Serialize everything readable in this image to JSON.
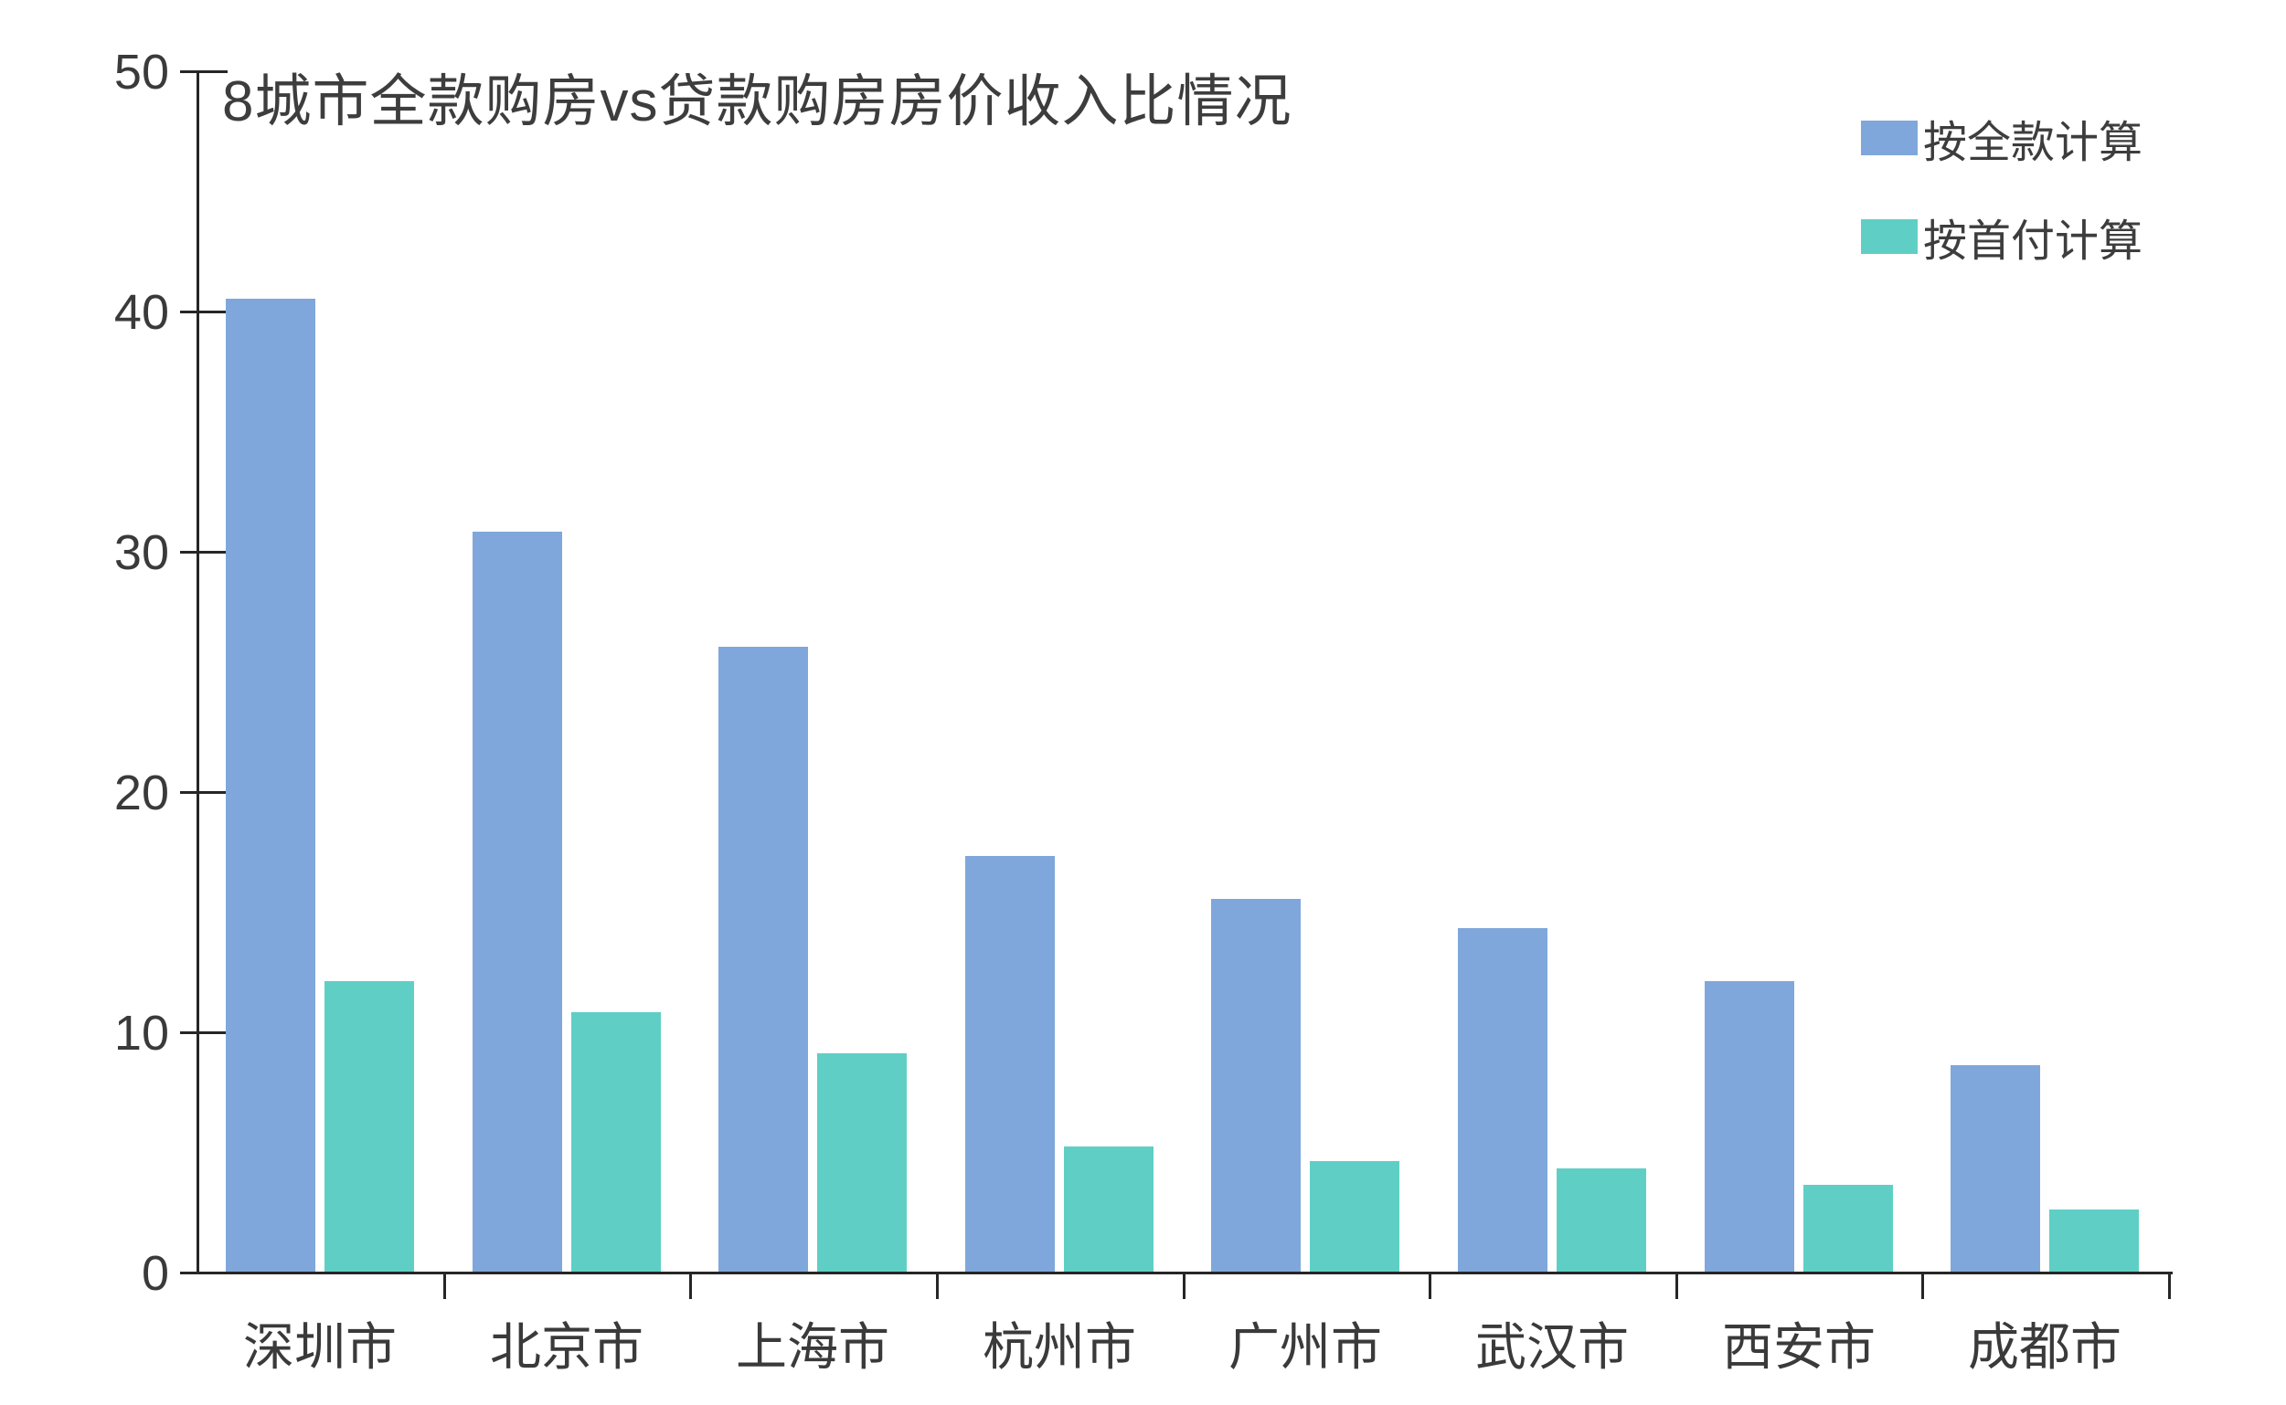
{
  "title": "8城市全款购房vs贷款购房房价收入比情况",
  "chart_data": {
    "type": "bar",
    "title": "8城市全款购房vs贷款购房房价收入比情况",
    "categories": [
      "深圳市",
      "北京市",
      "上海市",
      "杭州市",
      "广州市",
      "武汉市",
      "西安市",
      "成都市"
    ],
    "series": [
      {
        "name": "按全款计算",
        "color": "#7fa7db",
        "values": [
          40.5,
          30.8,
          26.0,
          17.3,
          15.5,
          14.3,
          12.1,
          8.6
        ]
      },
      {
        "name": "按首付计算",
        "color": "#5fcfc6",
        "values": [
          12.1,
          10.8,
          9.1,
          5.2,
          4.6,
          4.3,
          3.6,
          2.6
        ]
      }
    ],
    "xlabel": "",
    "ylabel": "",
    "ylim": [
      0,
      50
    ],
    "yticks": [
      0,
      10,
      20,
      30,
      40,
      50
    ],
    "grid": false,
    "legend_position": "top-right",
    "axis_color": "#262626",
    "text_color": "#3a3a3a"
  }
}
